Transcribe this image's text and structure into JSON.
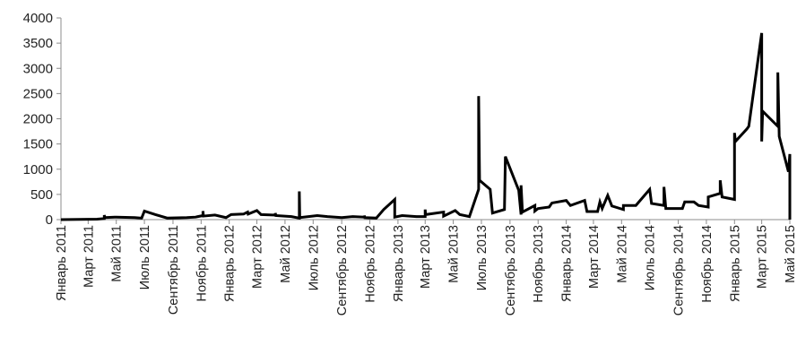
{
  "chart_data": {
    "type": "line",
    "title": "",
    "xlabel": "",
    "ylabel": "",
    "ylim": [
      0,
      4000
    ],
    "yticks": [
      0,
      500,
      1000,
      1500,
      2000,
      2500,
      3000,
      3500,
      4000
    ],
    "xlim": [
      "2011-01-01",
      "2015-05-01"
    ],
    "xtick_labels": [
      {
        "date": "2011-01-01",
        "label": "Январь 2011"
      },
      {
        "date": "2011-03-01",
        "label": "Март 2011"
      },
      {
        "date": "2011-05-01",
        "label": "Май 2011"
      },
      {
        "date": "2011-07-01",
        "label": "Июль 2011"
      },
      {
        "date": "2011-09-01",
        "label": "Сентябрь 2011"
      },
      {
        "date": "2011-11-01",
        "label": "Ноябрь 2011"
      },
      {
        "date": "2012-01-01",
        "label": "Январь 2012"
      },
      {
        "date": "2012-03-01",
        "label": "Март 2012"
      },
      {
        "date": "2012-05-01",
        "label": "Май 2012"
      },
      {
        "date": "2012-07-01",
        "label": "Июль 2012"
      },
      {
        "date": "2012-09-01",
        "label": "Сентябрь 2012"
      },
      {
        "date": "2012-11-01",
        "label": "Ноябрь 2012"
      },
      {
        "date": "2013-01-01",
        "label": "Январь 2013"
      },
      {
        "date": "2013-03-01",
        "label": "Март 2013"
      },
      {
        "date": "2013-05-01",
        "label": "Май 2013"
      },
      {
        "date": "2013-07-01",
        "label": "Июль 2013"
      },
      {
        "date": "2013-09-01",
        "label": "Сентябрь 2013"
      },
      {
        "date": "2013-11-01",
        "label": "Ноябрь 2013"
      },
      {
        "date": "2014-01-01",
        "label": "Январь 2014"
      },
      {
        "date": "2014-03-01",
        "label": "Март 2014"
      },
      {
        "date": "2014-05-01",
        "label": "Май 2014"
      },
      {
        "date": "2014-07-01",
        "label": "Июль 2014"
      },
      {
        "date": "2014-09-01",
        "label": "Сентябрь 2014"
      },
      {
        "date": "2014-11-01",
        "label": "Ноябрь 2014"
      },
      {
        "date": "2015-01-01",
        "label": "Январь 2015"
      },
      {
        "date": "2015-03-01",
        "label": "Март 2015"
      },
      {
        "date": "2015-05-01",
        "label": "Май 2015"
      }
    ],
    "grid": false,
    "legend": "none",
    "series": [
      {
        "color": "#000000",
        "points": [
          [
            "2011-01-01",
            0
          ],
          [
            "2011-02-10",
            5
          ],
          [
            "2011-03-20",
            10
          ],
          [
            "2011-04-05",
            20
          ],
          [
            "2011-04-05",
            90
          ],
          [
            "2011-04-06",
            40
          ],
          [
            "2011-05-01",
            50
          ],
          [
            "2011-06-10",
            40
          ],
          [
            "2011-06-25",
            30
          ],
          [
            "2011-07-01",
            170
          ],
          [
            "2011-07-25",
            100
          ],
          [
            "2011-08-20",
            30
          ],
          [
            "2011-10-01",
            40
          ],
          [
            "2011-10-20",
            50
          ],
          [
            "2011-10-25",
            60
          ],
          [
            "2011-11-05",
            80
          ],
          [
            "2011-11-05",
            170
          ],
          [
            "2011-11-06",
            70
          ],
          [
            "2011-12-01",
            90
          ],
          [
            "2011-12-25",
            40
          ],
          [
            "2012-01-05",
            100
          ],
          [
            "2012-02-01",
            110
          ],
          [
            "2012-02-10",
            150
          ],
          [
            "2012-02-11",
            110
          ],
          [
            "2012-03-01",
            180
          ],
          [
            "2012-03-10",
            100
          ],
          [
            "2012-04-10",
            90
          ],
          [
            "2012-04-10",
            130
          ],
          [
            "2012-04-11",
            80
          ],
          [
            "2012-05-15",
            60
          ],
          [
            "2012-06-01",
            30
          ],
          [
            "2012-06-01",
            560
          ],
          [
            "2012-06-02",
            40
          ],
          [
            "2012-07-10",
            80
          ],
          [
            "2012-08-01",
            60
          ],
          [
            "2012-09-01",
            40
          ],
          [
            "2012-09-25",
            60
          ],
          [
            "2012-10-20",
            50
          ],
          [
            "2012-10-20",
            80
          ],
          [
            "2012-10-21",
            40
          ],
          [
            "2012-11-15",
            30
          ],
          [
            "2012-12-01",
            200
          ],
          [
            "2012-12-25",
            400
          ],
          [
            "2012-12-25",
            50
          ],
          [
            "2013-01-10",
            80
          ],
          [
            "2013-02-10",
            60
          ],
          [
            "2013-03-01",
            60
          ],
          [
            "2013-03-01",
            200
          ],
          [
            "2013-03-02",
            100
          ],
          [
            "2013-04-10",
            150
          ],
          [
            "2013-04-10",
            70
          ],
          [
            "2013-05-05",
            180
          ],
          [
            "2013-05-15",
            100
          ],
          [
            "2013-06-05",
            60
          ],
          [
            "2013-06-25",
            600
          ],
          [
            "2013-06-25",
            2450
          ],
          [
            "2013-06-27",
            780
          ],
          [
            "2013-07-20",
            600
          ],
          [
            "2013-07-25",
            130
          ],
          [
            "2013-08-20",
            200
          ],
          [
            "2013-08-22",
            1250
          ],
          [
            "2013-09-20",
            580
          ],
          [
            "2013-09-25",
            100
          ],
          [
            "2013-09-25",
            680
          ],
          [
            "2013-09-28",
            150
          ],
          [
            "2013-10-25",
            280
          ],
          [
            "2013-10-25",
            170
          ],
          [
            "2013-11-01",
            220
          ],
          [
            "2013-11-25",
            250
          ],
          [
            "2013-12-01",
            330
          ],
          [
            "2014-01-01",
            380
          ],
          [
            "2014-01-10",
            280
          ],
          [
            "2014-02-10",
            380
          ],
          [
            "2014-02-15",
            160
          ],
          [
            "2014-03-10",
            160
          ],
          [
            "2014-03-15",
            350
          ],
          [
            "2014-03-20",
            220
          ],
          [
            "2014-04-01",
            480
          ],
          [
            "2014-04-10",
            270
          ],
          [
            "2014-05-05",
            200
          ],
          [
            "2014-05-05",
            280
          ],
          [
            "2014-06-01",
            280
          ],
          [
            "2014-07-01",
            600
          ],
          [
            "2014-07-05",
            320
          ],
          [
            "2014-08-01",
            280
          ],
          [
            "2014-08-01",
            650
          ],
          [
            "2014-08-05",
            220
          ],
          [
            "2014-09-10",
            220
          ],
          [
            "2014-09-15",
            350
          ],
          [
            "2014-10-05",
            350
          ],
          [
            "2014-10-15",
            280
          ],
          [
            "2014-11-05",
            250
          ],
          [
            "2014-11-05",
            450
          ],
          [
            "2014-12-01",
            520
          ],
          [
            "2014-12-01",
            780
          ],
          [
            "2014-12-05",
            450
          ],
          [
            "2015-01-01",
            400
          ],
          [
            "2015-01-01",
            1720
          ],
          [
            "2015-01-03",
            1550
          ],
          [
            "2015-01-28",
            1800
          ],
          [
            "2015-02-01",
            1850
          ],
          [
            "2015-03-01",
            3700
          ],
          [
            "2015-03-01",
            1550
          ],
          [
            "2015-03-03",
            2150
          ],
          [
            "2015-04-05",
            1850
          ],
          [
            "2015-04-05",
            2920
          ],
          [
            "2015-04-08",
            1650
          ],
          [
            "2015-04-28",
            950
          ],
          [
            "2015-05-01",
            1300
          ],
          [
            "2015-05-01",
            0
          ]
        ]
      }
    ]
  }
}
